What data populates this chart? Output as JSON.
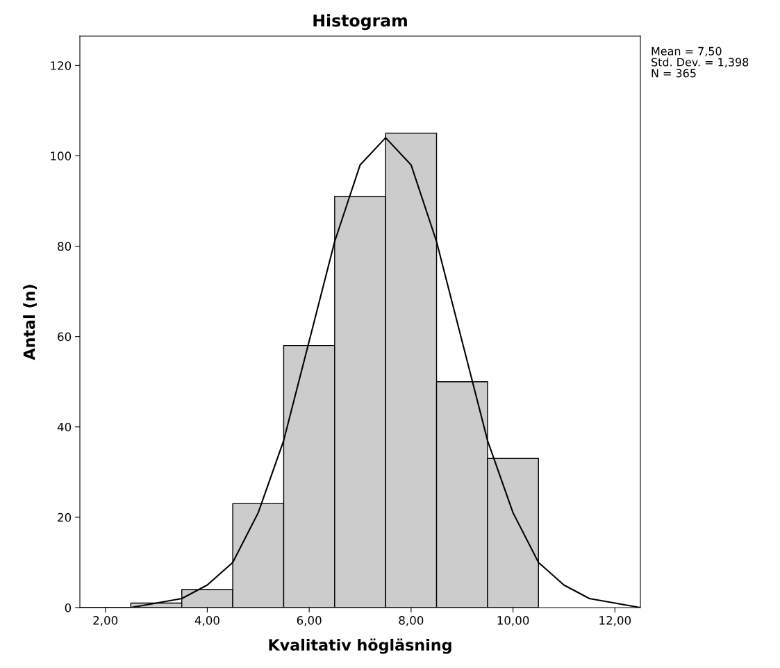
{
  "chart_data": {
    "type": "histogram",
    "title": "Histogram",
    "xlabel": "Kvalitativ högläsning",
    "ylabel": "Antal (n)",
    "bins": [
      2.5,
      3.5,
      4.5,
      5.5,
      6.5,
      7.5,
      8.5,
      9.5,
      10.5
    ],
    "values": [
      1,
      4,
      23,
      58,
      91,
      105,
      50,
      33
    ],
    "color": "#cccccc",
    "series": [
      {
        "type": "line",
        "color": "#000000",
        "x": [
          1.5,
          2.0,
          2.5,
          3.0,
          3.5,
          4.0,
          4.5,
          5.0,
          5.5,
          6.0,
          6.5,
          7.0,
          7.5,
          8.0,
          8.5,
          9.0,
          9.5,
          10.0,
          10.5,
          11.0,
          11.5,
          12.0,
          12.5
        ],
        "values": [
          0,
          0,
          0,
          1,
          2,
          5,
          10,
          21,
          37,
          59,
          81,
          98,
          104,
          98,
          81,
          59,
          37,
          21,
          10,
          5,
          2,
          1,
          0
        ]
      }
    ],
    "xlim": [
      1.5,
      12.5
    ],
    "xticks": [
      {
        "value": 2,
        "label": "2,00"
      },
      {
        "value": 4,
        "label": "4,00"
      },
      {
        "value": 6,
        "label": "6,00"
      },
      {
        "value": 8,
        "label": "8,00"
      },
      {
        "value": 10,
        "label": "10,00"
      },
      {
        "value": 12,
        "label": "12,00"
      }
    ],
    "ylim": [
      0,
      126.5
    ],
    "yticks": [
      0,
      20,
      40,
      60,
      80,
      100,
      120
    ],
    "grid": false,
    "annotations": [
      "Mean = 7,50",
      "Std. Dev. = 1,398",
      "N = 365"
    ]
  }
}
